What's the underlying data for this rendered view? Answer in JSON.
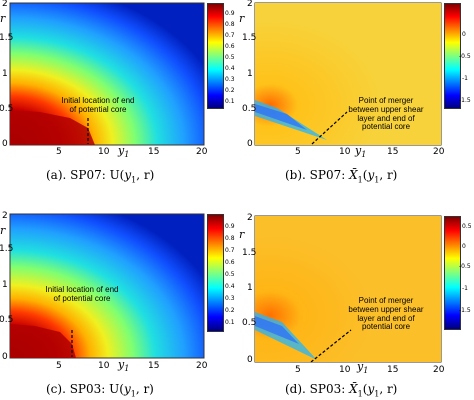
{
  "panels": [
    {
      "id": "a",
      "caption": "(a).  SP07: U(y₁, r)",
      "caption_parts": {
        "prefix": "(a).  SP07: U(",
        "var": "y",
        "sub": "1",
        "suffix": ", r)"
      },
      "annotation": "Initial location of end\nof potential core",
      "x_ticks": [
        "5",
        "10",
        "15",
        "20"
      ],
      "y_ticks": [
        "0",
        "0.5",
        "1",
        "1.5",
        "2"
      ],
      "x_label": "y",
      "x_label_sub": "1",
      "y_label": "r",
      "colorbar_ticks": [
        "0.9",
        "0.8",
        "0.7",
        "0.6",
        "0.5",
        "0.4",
        "0.3",
        "0.2",
        "0.1"
      ]
    },
    {
      "id": "b",
      "caption_parts": {
        "prefix": "(b).  SP07: ",
        "var": "X̄",
        "sub": "1",
        "mid": "(",
        "var2": "y",
        "sub2": "1",
        "suffix": ", r)"
      },
      "annotation": "Point of merger\nbetween upper shear\nlayer and end of\npotential core",
      "x_ticks": [
        "5",
        "10",
        "15",
        "20"
      ],
      "y_ticks": [
        "0",
        "0.5",
        "1",
        "1.5",
        "2"
      ],
      "x_label": "y",
      "x_label_sub": "1",
      "y_label": "r",
      "colorbar_ticks": [
        "0",
        "-0.5",
        "-1",
        "-1.5"
      ]
    },
    {
      "id": "c",
      "caption_parts": {
        "prefix": "(c).  SP03: U(",
        "var": "y",
        "sub": "1",
        "suffix": ", r)"
      },
      "annotation": "Initial location of end\nof potential core",
      "x_ticks": [
        "5",
        "10",
        "15",
        "20"
      ],
      "y_ticks": [
        "0",
        "0.5",
        "1",
        "1.5",
        "2"
      ],
      "x_label": "y",
      "x_label_sub": "1",
      "y_label": "r",
      "colorbar_ticks": [
        "0.9",
        "0.8",
        "0.7",
        "0.6",
        "0.5",
        "0.4",
        "0.3",
        "0.2",
        "0.1"
      ]
    },
    {
      "id": "d",
      "caption_parts": {
        "prefix": "(d).  SP03: ",
        "var": "X̄",
        "sub": "1",
        "mid": "(",
        "var2": "y",
        "sub2": "1",
        "suffix": ", r)"
      },
      "annotation": "Point of merger\nbetween upper shear\nlayer and end of\npotential core",
      "x_ticks": [
        "5",
        "10",
        "15",
        "20"
      ],
      "y_ticks": [
        "0",
        "0.5",
        "1",
        "1.5",
        "2"
      ],
      "x_label": "y",
      "x_label_sub": "1",
      "y_label": "r",
      "colorbar_ticks": [
        "0.5",
        "0",
        "-0.5",
        "-1",
        "-1.5"
      ]
    }
  ]
}
